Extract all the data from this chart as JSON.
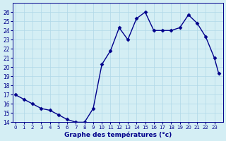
{
  "x": [
    0,
    1,
    2,
    3,
    4,
    5,
    6,
    7,
    8,
    9,
    10,
    11,
    12,
    13,
    14,
    15,
    16,
    17,
    18,
    19,
    20,
    21,
    22,
    23,
    23.5
  ],
  "y": [
    17.0,
    16.5,
    16.0,
    15.5,
    15.3,
    14.8,
    14.3,
    14.0,
    14.0,
    15.5,
    20.3,
    21.8,
    24.3,
    23.0,
    25.3,
    26.0,
    24.0,
    24.0,
    24.0,
    24.3,
    25.7,
    24.8,
    23.3,
    21.0,
    19.3
  ],
  "line_color": "#00008b",
  "marker_color": "#00008b",
  "bg_color": "#d4eef4",
  "grid_color": "#b0d8e8",
  "xlabel": "Graphe des températures (°c)",
  "xlabel_color": "#00008b",
  "tick_color": "#00008b",
  "ylim": [
    14,
    27
  ],
  "xlim": [
    -0.3,
    24
  ],
  "yticks": [
    14,
    15,
    16,
    17,
    18,
    19,
    20,
    21,
    22,
    23,
    24,
    25,
    26
  ],
  "xtick_labels": [
    "0",
    "1",
    "2",
    "3",
    "4",
    "5",
    "6",
    "7",
    "8",
    "9",
    "10",
    "11",
    "12",
    "13",
    "14",
    "15",
    "16",
    "17",
    "18",
    "19",
    "20",
    "21",
    "22",
    "23"
  ],
  "xtick_positions": [
    0,
    1,
    2,
    3,
    4,
    5,
    6,
    7,
    8,
    9,
    10,
    11,
    12,
    13,
    14,
    15,
    16,
    17,
    18,
    19,
    20,
    21,
    22,
    23
  ]
}
